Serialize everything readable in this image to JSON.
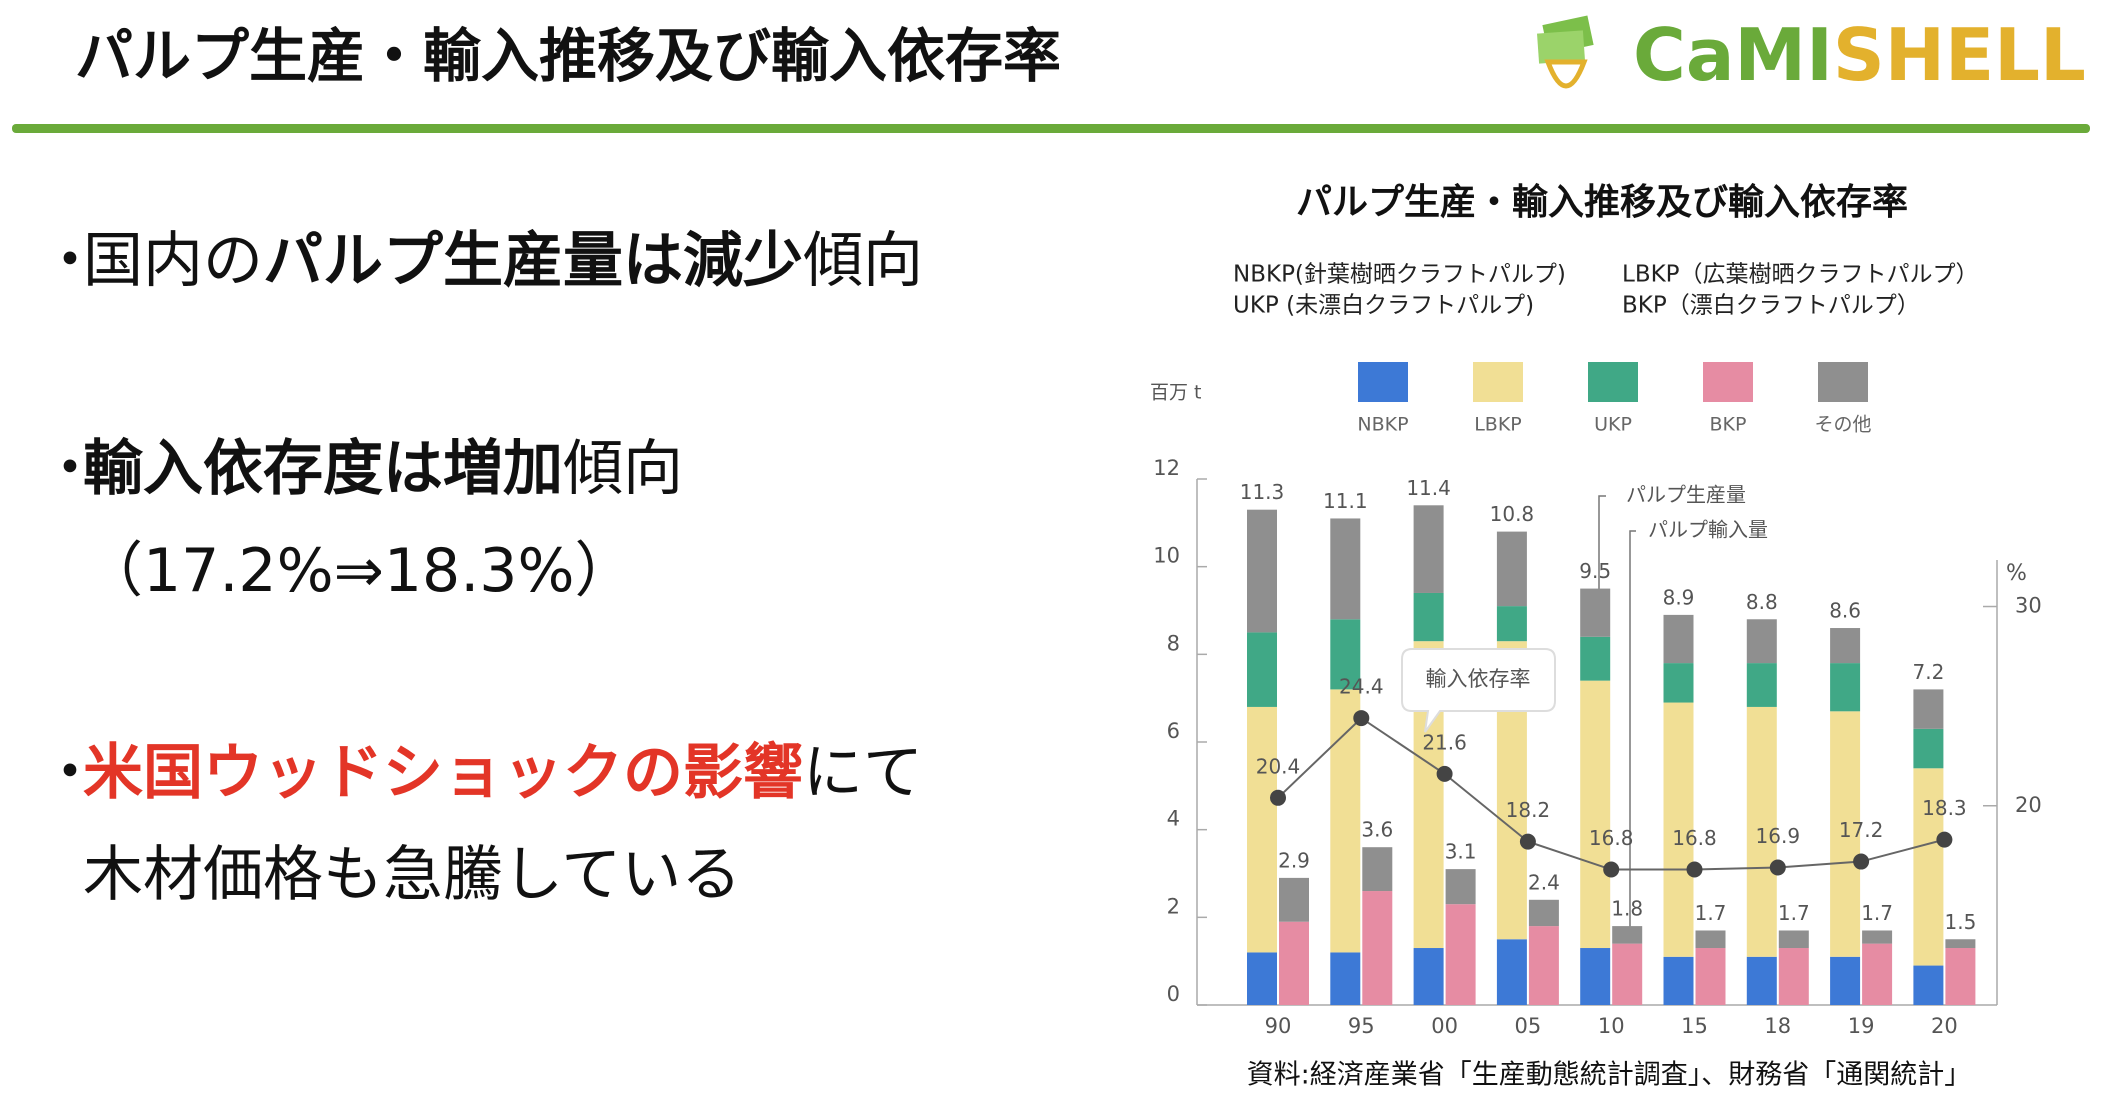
{
  "slide": {
    "title": "パルプ生産・輸入推移及び輸入依存率",
    "logo": {
      "part1": "CaMI",
      "part2": "SHELL"
    },
    "bullet_marker": "・",
    "bullets": [
      {
        "lines": [
          [
            {
              "text": "国内の",
              "style": "normal"
            },
            {
              "text": "パルプ生産量は減少",
              "style": "bold"
            },
            {
              "text": "傾向",
              "style": "normal"
            }
          ]
        ]
      },
      {
        "lines": [
          [
            {
              "text": "輸入依存度は増加",
              "style": "bold"
            },
            {
              "text": "傾向",
              "style": "normal"
            }
          ],
          [
            {
              "text": "（17.2%⇒18.3%）",
              "style": "normal"
            }
          ]
        ]
      },
      {
        "lines": [
          [
            {
              "text": "米国ウッドショックの影響",
              "style": "red"
            },
            {
              "text": "にて",
              "style": "normal"
            }
          ],
          [
            {
              "text": "木材価格も急騰している",
              "style": "normal"
            }
          ]
        ]
      }
    ]
  },
  "chart_data": {
    "type": "stacked_bar_line",
    "title": "パルプ生産・輸入推移及び輸入依存率",
    "subtitles": [
      "NBKP(針葉樹晒クラフトパルプ)",
      "LBKP（広葉樹晒クラフトパルプ）",
      "UKP (未漂白クラフトパルプ)",
      "BKP（漂白クラフトパルプ）"
    ],
    "source": "資料:経済産業省「生産動態統計調査」、財務省「通関統計」",
    "y_unit": "百万 t",
    "y2_unit": "%",
    "production_label": "パルプ生産量",
    "import_label": "パルプ輸入量",
    "categories": [
      "90",
      "95",
      "00",
      "05",
      "10",
      "15",
      "18",
      "19",
      "20"
    ],
    "ylim": [
      0,
      12
    ],
    "yticks": [
      0,
      2,
      4,
      6,
      8,
      10,
      12
    ],
    "y2lim": [
      10,
      36.4
    ],
    "y2ticks": [
      20,
      30
    ],
    "legend": [
      {
        "name": "NBKP",
        "color": "#3d79d6"
      },
      {
        "name": "LBKP",
        "color": "#f1df95"
      },
      {
        "name": "UKP",
        "color": "#40a886"
      },
      {
        "name": "BKP",
        "color": "#e68ca3"
      },
      {
        "name": "その他",
        "color": "#8f8f8f"
      }
    ],
    "series": [
      {
        "color": "#3d79d6",
        "values": [
          1.2,
          1.2,
          1.3,
          1.5,
          1.3,
          1.1,
          1.1,
          1.1,
          0.9
        ]
      },
      {
        "color": "#f1df95",
        "values": [
          5.6,
          6.0,
          7.0,
          6.8,
          6.1,
          5.8,
          5.7,
          5.6,
          4.5
        ]
      },
      {
        "color": "#40a886",
        "values": [
          1.7,
          1.6,
          1.1,
          0.8,
          1.0,
          0.9,
          1.0,
          1.1,
          0.9
        ]
      },
      {
        "color": "#8f8f8f",
        "values": [
          2.8,
          2.3,
          2.0,
          1.7,
          1.1,
          1.1,
          1.0,
          0.8,
          0.9
        ]
      }
    ],
    "import_series": [
      {
        "color": "#e68ca3",
        "values": [
          1.9,
          2.6,
          2.3,
          1.8,
          1.4,
          1.3,
          1.3,
          1.4,
          1.3
        ]
      },
      {
        "color": "#8f8f8f",
        "values": [
          1.0,
          1.0,
          0.8,
          0.6,
          0.4,
          0.4,
          0.4,
          0.3,
          0.2
        ]
      }
    ],
    "production_totals": [
      11.3,
      11.1,
      11.4,
      10.8,
      9.5,
      8.9,
      8.8,
      8.6,
      7.2
    ],
    "import_totals": [
      2.9,
      3.6,
      3.1,
      2.4,
      1.8,
      1.7,
      1.7,
      1.7,
      1.5
    ],
    "line": {
      "name": "輸入依存率",
      "axis": "y2",
      "color": "#666666",
      "values": [
        20.4,
        24.4,
        21.6,
        18.2,
        16.8,
        16.8,
        16.9,
        17.2,
        18.3
      ]
    }
  }
}
